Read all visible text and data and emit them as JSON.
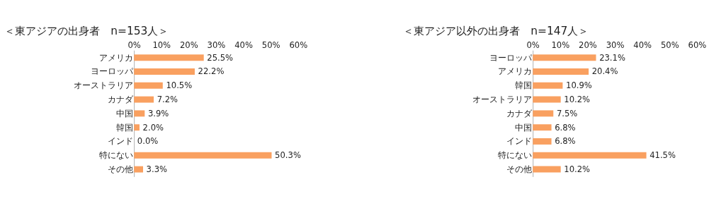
{
  "chart_data": [
    {
      "type": "bar",
      "orientation": "horizontal",
      "title": "＜東アジアの出身者　n=153人＞",
      "categories": [
        "アメリカ",
        "ヨーロッパ",
        "オーストラリア",
        "カナダ",
        "中国",
        "韓国",
        "インド",
        "特にない",
        "その他"
      ],
      "values": [
        25.5,
        22.2,
        10.5,
        7.2,
        3.9,
        2.0,
        0.0,
        50.3,
        3.3
      ],
      "value_labels": [
        "25.5%",
        "22.2%",
        "10.5%",
        "7.2%",
        "3.9%",
        "2.0%",
        "0.0%",
        "50.3%",
        "3.3%"
      ],
      "color": "#f9a060",
      "xlim": [
        0,
        60
      ],
      "xticks": [
        {
          "value": 0,
          "label": "0%"
        },
        {
          "value": 10,
          "label": "10%"
        },
        {
          "value": 20,
          "label": "20%"
        },
        {
          "value": 30,
          "label": "30%"
        },
        {
          "value": 40,
          "label": "40%"
        },
        {
          "value": 50,
          "label": "50%"
        },
        {
          "value": 60,
          "label": "60%"
        }
      ],
      "grid": false,
      "legend": false
    },
    {
      "type": "bar",
      "orientation": "horizontal",
      "title": "＜東アジア以外の出身者　n=147人＞",
      "categories": [
        "ヨーロッパ",
        "アメリカ",
        "韓国",
        "オーストラリア",
        "カナダ",
        "中国",
        "インド",
        "特にない",
        "その他"
      ],
      "values": [
        23.1,
        20.4,
        10.9,
        10.2,
        7.5,
        6.8,
        6.8,
        41.5,
        10.2
      ],
      "value_labels": [
        "23.1%",
        "20.4%",
        "10.9%",
        "10.2%",
        "7.5%",
        "6.8%",
        "6.8%",
        "41.5%",
        "10.2%"
      ],
      "color": "#f9a060",
      "xlim": [
        0,
        60
      ],
      "xticks": [
        {
          "value": 0,
          "label": "0%"
        },
        {
          "value": 10,
          "label": "10%"
        },
        {
          "value": 20,
          "label": "20%"
        },
        {
          "value": 30,
          "label": "30%"
        },
        {
          "value": 40,
          "label": "40%"
        },
        {
          "value": 50,
          "label": "50%"
        },
        {
          "value": 60,
          "label": "60%"
        }
      ],
      "grid": false,
      "legend": false
    }
  ]
}
